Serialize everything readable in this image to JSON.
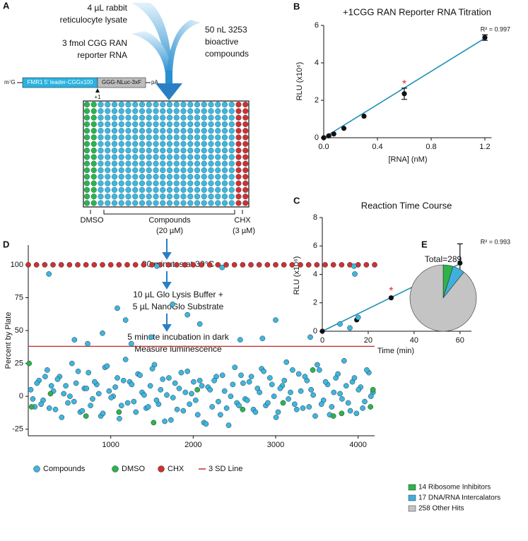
{
  "diagram": {
    "panel": "A",
    "inputs": [
      "4 µL rabbit",
      "reticulocyte lysate",
      "3 fmol CGG RAN",
      "reporter RNA",
      "50 nL 3253",
      "bioactive",
      "compounds"
    ],
    "construct": {
      "cap": "m⁷G",
      "leader": "FMR1 5' leader-CGGx100",
      "reporter": "GGG-NLuc-3xF",
      "tail": "pA",
      "start": "+1"
    },
    "plate_labels": [
      "DMSO",
      "Compounds",
      "(20 µM)",
      "CHX",
      "(3 µM)"
    ],
    "steps": [
      "30 minutes at 30°C",
      "10 µL Glo Lysis Buffer +",
      "5 µL NanoGlo Substrate",
      "5 minute incubation in dark",
      "Measure luminescence"
    ]
  },
  "chart_data": [
    {
      "panel": "B",
      "type": "scatter",
      "title": "+1CGG RAN Reporter RNA Titration",
      "xlabel": "[RNA] (nM)",
      "ylabel": "RLU (x10⁶)",
      "x": [
        0,
        0.0375,
        0.075,
        0.15,
        0.3,
        0.6,
        1.2
      ],
      "values": [
        0,
        0.1,
        0.2,
        0.5,
        1.15,
        2.35,
        5.35
      ],
      "errors": [
        null,
        null,
        null,
        null,
        null,
        0.3,
        0.15
      ],
      "color": "#111111",
      "trendline": {
        "x": [
          0,
          1.2
        ],
        "values": [
          0,
          5.32
        ],
        "color": "#1f8fb5"
      },
      "annotations": [
        {
          "text": "R² = 0.997"
        },
        {
          "text": "*",
          "x": 0.6,
          "y": 2.95,
          "color": "#e0312f"
        }
      ],
      "xlim": [
        0,
        1.25
      ],
      "ylim": [
        0,
        6
      ],
      "xticks": [
        {
          "value": 0,
          "label": "0.0"
        },
        0.4,
        0.8,
        1.2
      ],
      "yticks": [
        0,
        2,
        4,
        6
      ]
    },
    {
      "panel": "C",
      "type": "scatter",
      "title": "Reaction Time Course",
      "xlabel": "Time (min)",
      "ylabel": "RLU (x10⁶)",
      "x": [
        0,
        15,
        30,
        60
      ],
      "values": [
        0,
        0.8,
        2.35,
        4.8
      ],
      "errors": [
        null,
        null,
        null,
        1.35
      ],
      "color": "#111111",
      "trendline": {
        "x": [
          0,
          60
        ],
        "values": [
          0,
          4.75
        ],
        "color": "#1f8fb5"
      },
      "annotations": [
        {
          "text": "R² = 0.993"
        },
        {
          "text": "*",
          "x": 30,
          "y": 2.95,
          "color": "#e0312f"
        }
      ],
      "xlim": [
        0,
        65
      ],
      "ylim": [
        0,
        8
      ],
      "xticks": [
        0,
        20,
        40,
        60
      ],
      "yticks": [
        0,
        2,
        4,
        6,
        8
      ]
    },
    {
      "panel": "D",
      "type": "points",
      "ylabel": "Percent by Plate",
      "series": [
        {
          "name": "Compounds",
          "color": "#3fb6dd",
          "x": [
            30,
            80,
            130,
            180,
            230,
            280,
            330,
            380,
            430,
            480,
            530,
            580,
            630,
            680,
            730,
            780,
            830,
            880,
            930,
            980,
            1030,
            1080,
            1130,
            1180,
            1230,
            1280,
            1330,
            1380,
            1430,
            1480,
            1530,
            1580,
            1630,
            1680,
            1730,
            1780,
            1830,
            1880,
            1930,
            1980,
            2030,
            2080,
            2130,
            2180,
            2230,
            2280,
            2330,
            2380,
            2430,
            2480,
            2530,
            2580,
            2630,
            2680,
            2730,
            2780,
            2830,
            2880,
            2930,
            2980,
            3030,
            3080,
            3130,
            3180,
            3230,
            3280,
            3330,
            3380,
            3430,
            3480,
            3530,
            3580,
            3630,
            3680,
            3730,
            3780,
            3830,
            3880,
            3930,
            3980,
            4030,
            4080,
            4130,
            4180,
            55,
            105,
            155,
            205,
            255,
            305,
            355,
            405,
            455,
            505,
            555,
            605,
            655,
            705,
            755,
            805,
            855,
            905,
            955,
            1005,
            1055,
            1105,
            1155,
            1205,
            1255,
            1305,
            1355,
            1405,
            1455,
            1505,
            1555,
            1605,
            1655,
            1705,
            1755,
            1805,
            1855,
            1905,
            1955,
            2005,
            2055,
            2105,
            2155,
            2205,
            2255,
            2305,
            2355,
            2405,
            2455,
            2505,
            2555,
            2605,
            2655,
            2705,
            2755,
            2805,
            2855,
            2905,
            2955,
            3005,
            3055,
            3105,
            3155,
            3205,
            3255,
            3305,
            3355,
            3405,
            3455,
            3505,
            3555,
            3605,
            3655,
            3705,
            3755,
            3805,
            3855,
            3905,
            3955,
            4005,
            4055,
            4105,
            4155,
            250,
            560,
            720,
            900,
            1080,
            1180,
            1250,
            1490,
            1560,
            1750,
            1930,
            2080,
            2350,
            2570,
            2840,
            3000,
            3420,
            3780,
            3900,
            3950,
            4000,
            3960
          ],
          "values": [
            5,
            -8,
            12,
            -3,
            20,
            8,
            -10,
            15,
            2,
            -5,
            25,
            10,
            -12,
            6,
            18,
            -2,
            9,
            -15,
            22,
            4,
            0,
            14,
            -7,
            28,
            11,
            -4,
            17,
            3,
            -9,
            8,
            24,
            -6,
            13,
            1,
            -18,
            10,
            6,
            -11,
            19,
            2,
            -3,
            12,
            -20,
            7,
            -8,
            15,
            -14,
            4,
            -22,
            9,
            -5,
            16,
            -2,
            11,
            -10,
            6,
            21,
            -7,
            14,
            0,
            -12,
            8,
            26,
            3,
            -6,
            17,
            -9,
            12,
            5,
            -15,
            20,
            -3,
            9,
            -8,
            14,
            2,
            27,
            -5,
            11,
            -13,
            7,
            -4,
            18,
            3,
            -2,
            10,
            -6,
            15,
            -9,
            4,
            13,
            -16,
            8,
            0,
            -4,
            19,
            -11,
            6,
            -7,
            11,
            2,
            -13,
            23,
            -1,
            7,
            -17,
            12,
            -5,
            9,
            -12,
            16,
            1,
            -8,
            21,
            -3,
            5,
            -19,
            14,
            -1,
            -10,
            18,
            3,
            -6,
            11,
            -14,
            8,
            -21,
            5,
            12,
            -4,
            16,
            -9,
            0,
            22,
            -7,
            10,
            -3,
            15,
            -12,
            3,
            19,
            -5,
            9,
            -16,
            6,
            12,
            -2,
            20,
            -10,
            4,
            15,
            -8,
            1,
            24,
            -6,
            11,
            -14,
            3,
            17,
            -2,
            8,
            -11,
            14,
            5,
            -9,
            20,
            0,
            93,
            43,
            40,
            48,
            67,
            58,
            40,
            45,
            99,
            70,
            62,
            55,
            98,
            43,
            44,
            58,
            45,
            55,
            52,
            99,
            60,
            93
          ]
        },
        {
          "name": "DMSO",
          "color": "#2db34a",
          "x": [
            10,
            40,
            270,
            700,
            1100,
            1520,
            2050,
            2600,
            3090,
            3450,
            3700,
            3800,
            4150,
            4180
          ],
          "values": [
            25,
            -8,
            2,
            -15,
            -12,
            -20,
            5,
            -10,
            -5,
            20,
            -15,
            -13,
            -8,
            5
          ]
        },
        {
          "name": "CHX",
          "color": "#d32f2f",
          "x": [
            0,
            100,
            200,
            300,
            400,
            500,
            600,
            700,
            800,
            900,
            1000,
            1100,
            1200,
            1300,
            1400,
            1500,
            1600,
            1700,
            1800,
            1900,
            2000,
            2100,
            2200,
            2300,
            2400,
            2500,
            2600,
            2700,
            2800,
            2900,
            3000,
            3100,
            3200,
            3300,
            3400,
            3500,
            3600,
            3700,
            3800,
            3900,
            4000,
            4100,
            4200
          ],
          "values": [
            100,
            100,
            100,
            100,
            100,
            100,
            100,
            100,
            100,
            100,
            100,
            100,
            100,
            100,
            100,
            100,
            100,
            100,
            100,
            100,
            100,
            100,
            100,
            100,
            100,
            100,
            100,
            100,
            100,
            100,
            100,
            100,
            100,
            100,
            100,
            100,
            100,
            100,
            100,
            100,
            100,
            100,
            100
          ]
        }
      ],
      "reference_lines": [
        {
          "name": "3 SD Line",
          "value": 38,
          "color": "#c62828"
        }
      ],
      "xlim": [
        0,
        4200
      ],
      "ylim": [
        -30,
        115
      ],
      "xticks": [
        1000,
        2000,
        3000,
        4000
      ],
      "yticks": [
        -25,
        0,
        25,
        50,
        75,
        100
      ]
    },
    {
      "panel": "E",
      "type": "pie",
      "title": "Total=289",
      "categories": [
        "14 Ribosome Inhibitors",
        "17 DNA/RNA Intercalators",
        "258 Other Hits"
      ],
      "values": [
        14,
        17,
        258
      ],
      "colors": [
        "#2db34a",
        "#3fb0dc",
        "#c4c4c4"
      ]
    }
  ]
}
